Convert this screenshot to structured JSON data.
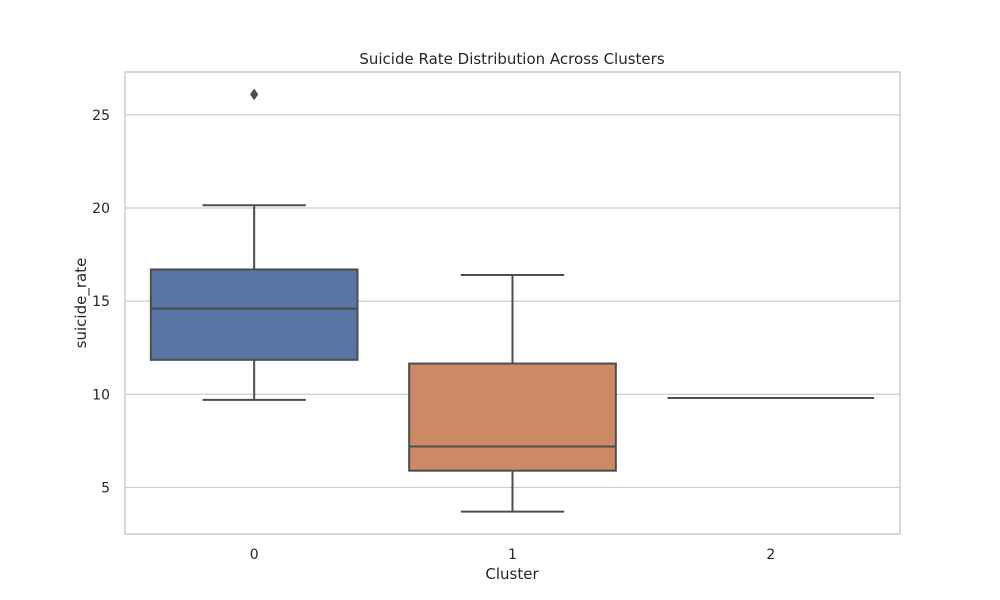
{
  "chart_data": {
    "type": "box",
    "title": "Suicide Rate Distribution Across Clusters",
    "xlabel": "Cluster",
    "ylabel": "suicide_rate",
    "categories": [
      "0",
      "1",
      "2"
    ],
    "y_ticks": [
      5,
      10,
      15,
      20,
      25
    ],
    "y_tick_labels": [
      "5",
      "10",
      "15",
      "20",
      "25"
    ],
    "ylim": [
      2.5,
      27.3
    ],
    "grid": true,
    "boxes": [
      {
        "category": "0",
        "whisker_low": 9.7,
        "q1": 11.85,
        "median": 14.6,
        "q3": 16.7,
        "whisker_high": 20.15,
        "outliers": [
          26.1
        ],
        "color": "#5875a4"
      },
      {
        "category": "1",
        "whisker_low": 3.7,
        "q1": 5.9,
        "median": 7.2,
        "q3": 11.65,
        "whisker_high": 16.4,
        "outliers": [],
        "color": "#cc8963"
      },
      {
        "category": "2",
        "whisker_low": 9.8,
        "q1": 9.8,
        "median": 9.8,
        "q3": 9.8,
        "whisker_high": 9.8,
        "outliers": [],
        "color": "#5f9e6e"
      }
    ],
    "line_color": "#4d4d4d"
  }
}
